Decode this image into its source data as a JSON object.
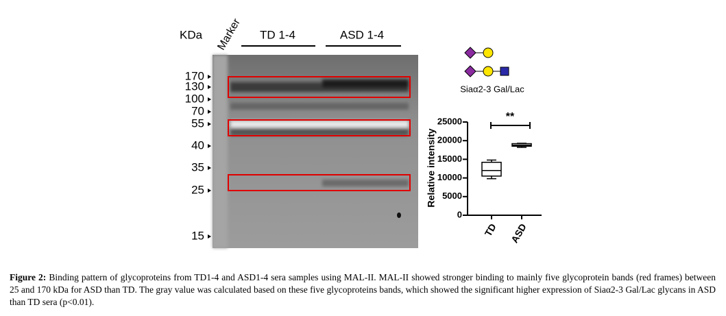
{
  "blot": {
    "kda_label": "KDa",
    "marker_label": "Marker",
    "groups": [
      "TD 1-4",
      "ASD 1-4"
    ],
    "ladder": [
      170,
      130,
      100,
      70,
      55,
      40,
      35,
      25,
      15
    ]
  },
  "legend": {
    "text": "Siaα2-3 Gal/Lac"
  },
  "chart_data": {
    "type": "box",
    "categories": [
      "TD",
      "ASD"
    ],
    "y_label": "Relative intensity",
    "annotation": "**",
    "color": "#000000",
    "series": [
      {
        "min": 9800,
        "q1": 10500,
        "median": 12000,
        "q3": 14200,
        "max": 14800
      },
      {
        "min": 18200,
        "q1": 18500,
        "median": 18800,
        "q3": 19200,
        "max": 19300
      }
    ],
    "ylim": [
      0,
      25000
    ],
    "yticks": [
      0,
      5000,
      10000,
      15000,
      20000,
      25000
    ]
  },
  "caption": {
    "label": "Figure 2:",
    "text": "Binding pattern of glycoproteins from TD1-4 and ASD1-4 sera samples using MAL-II. MAL-II showed stronger binding to mainly five glycoprotein bands (red frames) between 25 and 170 kDa for ASD than TD. The gray value was calculated based on these five glycoproteins bands, which showed the significant higher expression of Siaα2-3 Gal/Lac glycans in ASD than TD sera (p<0.01)."
  }
}
